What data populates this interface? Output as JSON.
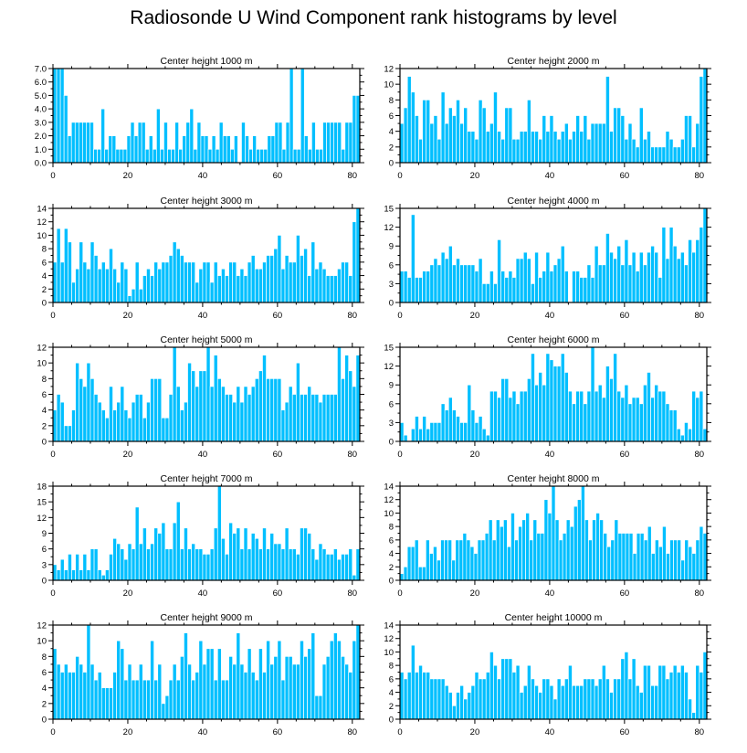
{
  "title": "Radiosonde U Wind Component rank histograms by level",
  "bar_color": "#00bfff",
  "bar_edge_color": "#ffffff",
  "chart_data": [
    {
      "type": "bar",
      "title": "Center height 1000 m",
      "xlim": [
        0,
        82
      ],
      "ylim": [
        0,
        7
      ],
      "xticks": [
        0,
        20,
        40,
        60,
        80
      ],
      "yticks": [
        0,
        1,
        2,
        3,
        4,
        5,
        6,
        7
      ],
      "ytick_labels": [
        "0.0",
        "1.0",
        "2.0",
        "3.0",
        "4.0",
        "5.0",
        "6.0",
        "7.0"
      ],
      "values": [
        7,
        7,
        7,
        5,
        2,
        3,
        3,
        3,
        3,
        3,
        3,
        1,
        1,
        4,
        1,
        2,
        2,
        1,
        1,
        1,
        2,
        3,
        2,
        3,
        3,
        1,
        2,
        1,
        4,
        1,
        3,
        1,
        1,
        3,
        1,
        2,
        3,
        4,
        1,
        3,
        2,
        2,
        1,
        2,
        1,
        3,
        2,
        2,
        1,
        2,
        0,
        3,
        2,
        1,
        2,
        1,
        1,
        1,
        2,
        2,
        3,
        3,
        1,
        3,
        7,
        1,
        1,
        7,
        2,
        1,
        3,
        1,
        1,
        3,
        3,
        3,
        3,
        3,
        1,
        3,
        3,
        5,
        5
      ]
    },
    {
      "type": "bar",
      "title": "Center height 2000 m",
      "xlim": [
        0,
        82
      ],
      "ylim": [
        0,
        12
      ],
      "xticks": [
        0,
        20,
        40,
        60,
        80
      ],
      "yticks": [
        0,
        2,
        4,
        6,
        8,
        10,
        12
      ],
      "ytick_labels": [
        "0",
        "2",
        "4",
        "6",
        "8",
        "10",
        "12"
      ],
      "values": [
        5,
        7,
        11,
        9,
        6,
        3,
        8,
        8,
        5,
        6,
        3,
        9,
        5,
        7,
        6,
        8,
        5,
        7,
        4,
        4,
        3,
        8,
        7,
        4,
        5,
        9,
        4,
        3,
        7,
        7,
        3,
        3,
        4,
        4,
        8,
        4,
        4,
        3,
        6,
        4,
        6,
        4,
        3,
        4,
        5,
        3,
        4,
        6,
        4,
        6,
        3,
        5,
        5,
        5,
        5,
        11,
        4,
        7,
        7,
        6,
        3,
        5,
        3,
        2,
        7,
        3,
        4,
        2,
        2,
        2,
        2,
        4,
        3,
        2,
        2,
        3,
        6,
        6,
        2,
        5,
        11,
        12
      ]
    },
    {
      "type": "bar",
      "title": "Center height 3000 m",
      "xlim": [
        0,
        82
      ],
      "ylim": [
        0,
        14
      ],
      "xticks": [
        0,
        20,
        40,
        60,
        80
      ],
      "yticks": [
        0,
        2,
        4,
        6,
        8,
        10,
        12,
        14
      ],
      "ytick_labels": [
        "0",
        "2",
        "4",
        "6",
        "8",
        "10",
        "12",
        "14"
      ],
      "values": [
        6,
        11,
        6,
        11,
        9,
        3,
        5,
        9,
        6,
        5,
        9,
        7,
        5,
        6,
        5,
        8,
        5,
        3,
        6,
        5,
        1,
        2,
        6,
        2,
        4,
        5,
        4,
        6,
        5,
        6,
        6,
        7,
        9,
        8,
        7,
        6,
        6,
        6,
        3,
        5,
        6,
        6,
        3,
        6,
        4,
        5,
        4,
        6,
        6,
        4,
        5,
        4,
        6,
        7,
        5,
        5,
        6,
        7,
        7,
        8,
        10,
        5,
        7,
        6,
        6,
        10,
        7,
        8,
        4,
        9,
        5,
        6,
        5,
        4,
        4,
        4,
        5,
        6,
        6,
        4,
        12,
        14
      ]
    },
    {
      "type": "bar",
      "title": "Center height 4000 m",
      "xlim": [
        0,
        82
      ],
      "ylim": [
        0,
        15
      ],
      "xticks": [
        0,
        20,
        40,
        60,
        80
      ],
      "yticks": [
        0,
        3,
        6,
        9,
        12,
        15
      ],
      "ytick_labels": [
        "0",
        "3",
        "6",
        "9",
        "12",
        "15"
      ],
      "values": [
        5,
        5,
        4,
        14,
        4,
        4,
        5,
        5,
        6,
        7,
        6,
        8,
        7,
        9,
        6,
        7,
        6,
        6,
        6,
        6,
        5,
        7,
        3,
        3,
        5,
        3,
        10,
        5,
        4,
        5,
        4,
        7,
        7,
        8,
        7,
        3,
        8,
        4,
        5,
        8,
        5,
        6,
        7,
        9,
        5,
        0,
        5,
        5,
        4,
        4,
        6,
        4,
        9,
        6,
        6,
        11,
        8,
        7,
        9,
        6,
        10,
        6,
        8,
        5,
        8,
        6,
        8,
        9,
        8,
        4,
        12,
        7,
        12,
        9,
        7,
        8,
        6,
        10,
        8,
        10,
        12,
        15
      ]
    },
    {
      "type": "bar",
      "title": "Center height 5000 m",
      "xlim": [
        0,
        82
      ],
      "ylim": [
        0,
        12
      ],
      "xticks": [
        0,
        20,
        40,
        60,
        80
      ],
      "yticks": [
        0,
        2,
        4,
        6,
        8,
        10,
        12
      ],
      "ytick_labels": [
        "0",
        "2",
        "4",
        "6",
        "8",
        "10",
        "12"
      ],
      "values": [
        4,
        6,
        5,
        2,
        2,
        4,
        10,
        8,
        7,
        10,
        8,
        6,
        5,
        4,
        3,
        7,
        4,
        5,
        7,
        4,
        3,
        5,
        6,
        6,
        3,
        5,
        8,
        8,
        8,
        3,
        3,
        6,
        12,
        7,
        4,
        5,
        10,
        9,
        7,
        9,
        9,
        12,
        7,
        11,
        8,
        7,
        6,
        6,
        5,
        7,
        5,
        7,
        6,
        7,
        8,
        9,
        11,
        8,
        8,
        8,
        8,
        4,
        5,
        7,
        6,
        10,
        6,
        6,
        7,
        6,
        6,
        5,
        6,
        6,
        6,
        6,
        12,
        8,
        11,
        9,
        7,
        11
      ]
    },
    {
      "type": "bar",
      "title": "Center height 6000 m",
      "xlim": [
        0,
        82
      ],
      "ylim": [
        0,
        15
      ],
      "xticks": [
        0,
        20,
        40,
        60,
        80
      ],
      "yticks": [
        0,
        3,
        6,
        9,
        12,
        15
      ],
      "ytick_labels": [
        "0",
        "3",
        "6",
        "9",
        "12",
        "15"
      ],
      "values": [
        3,
        1,
        0,
        2,
        4,
        2,
        4,
        2,
        3,
        3,
        3,
        6,
        5,
        7,
        5,
        4,
        3,
        3,
        9,
        5,
        3,
        4,
        2,
        1,
        8,
        8,
        7,
        10,
        10,
        7,
        8,
        6,
        8,
        8,
        10,
        14,
        9,
        11,
        9,
        14,
        13,
        12,
        12,
        14,
        11,
        8,
        6,
        8,
        8,
        6,
        8,
        15,
        8,
        9,
        7,
        12,
        10,
        14,
        8,
        7,
        9,
        6,
        7,
        7,
        6,
        9,
        11,
        7,
        9,
        8,
        8,
        6,
        5,
        5,
        2,
        1,
        3,
        2,
        8,
        7,
        8,
        2
      ]
    },
    {
      "type": "bar",
      "title": "Center height 7000 m",
      "xlim": [
        0,
        82
      ],
      "ylim": [
        0,
        18
      ],
      "xticks": [
        0,
        20,
        40,
        60,
        80
      ],
      "yticks": [
        0,
        3,
        6,
        9,
        12,
        15,
        18
      ],
      "ytick_labels": [
        "0",
        "3",
        "6",
        "9",
        "12",
        "15",
        "18"
      ],
      "values": [
        3,
        2,
        4,
        2,
        5,
        2,
        5,
        2,
        5,
        2,
        6,
        6,
        2,
        1,
        2,
        5,
        8,
        7,
        6,
        4,
        7,
        6,
        14,
        7,
        10,
        6,
        7,
        10,
        9,
        11,
        6,
        6,
        11,
        15,
        6,
        10,
        6,
        7,
        6,
        6,
        5,
        5,
        6,
        10,
        18,
        8,
        5,
        11,
        9,
        10,
        6,
        10,
        6,
        9,
        8,
        6,
        10,
        6,
        9,
        7,
        7,
        6,
        10,
        6,
        6,
        5,
        10,
        10,
        9,
        6,
        4,
        7,
        6,
        5,
        5,
        6,
        4,
        5,
        5,
        6,
        1,
        6
      ]
    },
    {
      "type": "bar",
      "title": "Center height 8000 m",
      "xlim": [
        0,
        82
      ],
      "ylim": [
        0,
        14
      ],
      "xticks": [
        0,
        20,
        40,
        60,
        80
      ],
      "yticks": [
        0,
        2,
        4,
        6,
        8,
        10,
        12,
        14
      ],
      "ytick_labels": [
        "0",
        "2",
        "4",
        "6",
        "8",
        "10",
        "12",
        "14"
      ],
      "values": [
        1,
        2,
        5,
        5,
        6,
        2,
        2,
        6,
        4,
        5,
        3,
        6,
        6,
        6,
        3,
        6,
        6,
        7,
        6,
        5,
        4,
        6,
        6,
        7,
        9,
        6,
        9,
        8,
        9,
        5,
        10,
        6,
        8,
        9,
        10,
        6,
        9,
        7,
        7,
        12,
        10,
        14,
        9,
        6,
        7,
        9,
        8,
        11,
        12,
        14,
        9,
        6,
        9,
        10,
        9,
        7,
        5,
        6,
        9,
        7,
        7,
        7,
        7,
        4,
        7,
        7,
        6,
        8,
        4,
        6,
        5,
        8,
        4,
        6,
        6,
        6,
        3,
        6,
        5,
        4,
        6,
        8,
        7
      ]
    },
    {
      "type": "bar",
      "title": "Center height 9000 m",
      "xlim": [
        0,
        82
      ],
      "ylim": [
        0,
        12
      ],
      "xticks": [
        0,
        20,
        40,
        60,
        80
      ],
      "yticks": [
        0,
        2,
        4,
        6,
        8,
        10,
        12
      ],
      "ytick_labels": [
        "0",
        "2",
        "4",
        "6",
        "8",
        "10",
        "12"
      ],
      "values": [
        9,
        7,
        6,
        7,
        6,
        6,
        8,
        7,
        6,
        12,
        7,
        5,
        6,
        4,
        4,
        4,
        6,
        10,
        9,
        5,
        7,
        5,
        5,
        7,
        5,
        5,
        10,
        5,
        7,
        2,
        3,
        5,
        7,
        5,
        8,
        11,
        7,
        5,
        6,
        10,
        7,
        9,
        9,
        5,
        9,
        5,
        5,
        8,
        7,
        11,
        7,
        6,
        9,
        6,
        5,
        9,
        6,
        10,
        7,
        8,
        10,
        5,
        8,
        8,
        7,
        7,
        10,
        8,
        9,
        11,
        3,
        3,
        7,
        8,
        10,
        11,
        10,
        8,
        7,
        6,
        10,
        12
      ]
    },
    {
      "type": "bar",
      "title": "Center height 10000 m",
      "xlim": [
        0,
        82
      ],
      "ylim": [
        0,
        14
      ],
      "xticks": [
        0,
        20,
        40,
        60,
        80
      ],
      "yticks": [
        0,
        2,
        4,
        6,
        8,
        10,
        12,
        14
      ],
      "ytick_labels": [
        "0",
        "2",
        "4",
        "6",
        "8",
        "10",
        "12",
        "14"
      ],
      "values": [
        7,
        6,
        7,
        11,
        7,
        8,
        7,
        7,
        6,
        6,
        6,
        6,
        5,
        4,
        2,
        4,
        5,
        3,
        4,
        5,
        7,
        6,
        6,
        7,
        10,
        8,
        6,
        9,
        9,
        9,
        7,
        8,
        4,
        5,
        8,
        6,
        5,
        4,
        6,
        6,
        5,
        3,
        6,
        5,
        6,
        8,
        5,
        5,
        5,
        6,
        6,
        6,
        5,
        6,
        8,
        6,
        4,
        6,
        6,
        9,
        10,
        6,
        9,
        5,
        4,
        8,
        8,
        5,
        5,
        8,
        8,
        6,
        7,
        8,
        7,
        8,
        7,
        3,
        1,
        8,
        7,
        10
      ]
    }
  ]
}
